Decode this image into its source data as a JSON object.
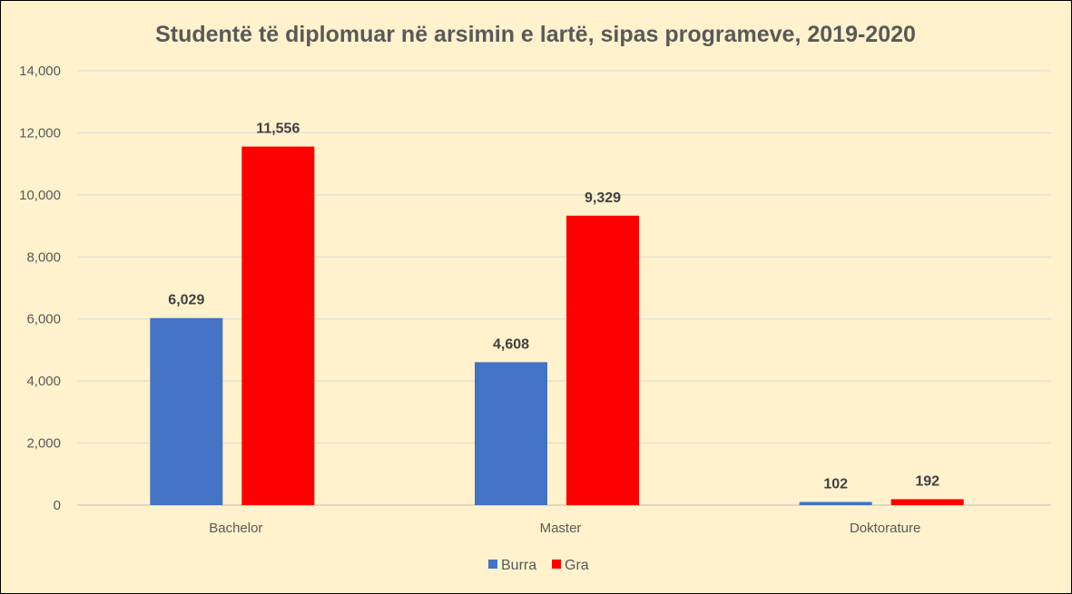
{
  "chart_data": {
    "type": "bar",
    "title": "Studentë të diplomuar në arsimin e lartë, sipas programeve, 2019-2020",
    "categories": [
      "Bachelor",
      "Master",
      "Doktorature"
    ],
    "series": [
      {
        "name": "Burra",
        "color": "#4472C4",
        "values": [
          6029,
          4608,
          102
        ],
        "labels": [
          "6,029",
          "4,608",
          "102"
        ]
      },
      {
        "name": "Gra",
        "color": "#FF0000",
        "values": [
          11556,
          9329,
          192
        ],
        "labels": [
          "11,556",
          "9,329",
          "192"
        ]
      }
    ],
    "ylim": [
      0,
      14000
    ],
    "yticks": [
      0,
      2000,
      4000,
      6000,
      8000,
      10000,
      12000,
      14000
    ],
    "ytick_labels": [
      "0",
      "2,000",
      "4,000",
      "6,000",
      "8,000",
      "10,000",
      "12,000",
      "14,000"
    ],
    "grid": true,
    "legend": "bottom",
    "xlabel": "",
    "ylabel": ""
  }
}
